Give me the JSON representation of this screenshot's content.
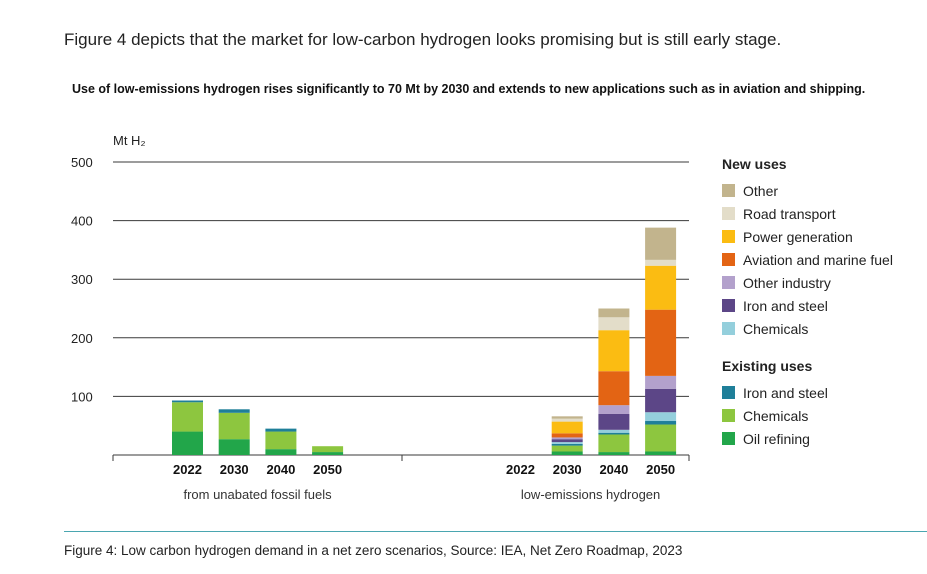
{
  "intro_text": "Figure 4 depicts that the market for low-carbon hydrogen looks promising but is still early stage.",
  "chart_data": {
    "type": "bar",
    "stacked": true,
    "title": "Use of low-emissions hydrogen rises significantly to 70 Mt by 2030 and extends to new applications such as in aviation and shipping.",
    "ylabel": "Mt H₂",
    "ylim": [
      0,
      500
    ],
    "yticks": [
      "500",
      "400",
      "300",
      "200",
      "100"
    ],
    "groups": [
      {
        "label": "from unabated fossil fuels",
        "categories": [
          "2022",
          "2030",
          "2040",
          "2050"
        ]
      },
      {
        "label": "low-emissions hydrogen",
        "categories": [
          "2022",
          "2030",
          "2040",
          "2050"
        ]
      }
    ],
    "series": [
      {
        "key": "oil_refining",
        "name": "Oil refining",
        "color": "#22a64a",
        "values": [
          [
            40,
            27,
            10,
            5
          ],
          [
            0,
            6,
            5,
            6
          ]
        ]
      },
      {
        "key": "chem_existing",
        "name": "Chemicals",
        "color": "#8dc63f",
        "values": [
          [
            50,
            45,
            30,
            10
          ],
          [
            0,
            10,
            30,
            46
          ]
        ]
      },
      {
        "key": "iron_existing",
        "name": "Iron and steel",
        "color": "#1f7f99",
        "values": [
          [
            3,
            6,
            5,
            0
          ],
          [
            0,
            3,
            3,
            6
          ]
        ]
      },
      {
        "key": "chem_new",
        "name": "Chemicals",
        "color": "#94cfdc",
        "values": [
          [
            0,
            0,
            0,
            0
          ],
          [
            0,
            3,
            5,
            15
          ]
        ]
      },
      {
        "key": "iron_new",
        "name": "Iron and steel",
        "color": "#5c4687",
        "values": [
          [
            0,
            0,
            0,
            0
          ],
          [
            0,
            5,
            27,
            40
          ]
        ]
      },
      {
        "key": "other_industry",
        "name": "Other industry",
        "color": "#b3a1cc",
        "values": [
          [
            0,
            0,
            0,
            0
          ],
          [
            0,
            3,
            15,
            22
          ]
        ]
      },
      {
        "key": "aviation_marine",
        "name": "Aviation and marine fuel",
        "color": "#e36414",
        "values": [
          [
            0,
            0,
            0,
            0
          ],
          [
            0,
            7,
            58,
            113
          ]
        ]
      },
      {
        "key": "power_gen",
        "name": "Power generation",
        "color": "#fbbc12",
        "values": [
          [
            0,
            0,
            0,
            0
          ],
          [
            0,
            20,
            70,
            75
          ]
        ]
      },
      {
        "key": "road_transport",
        "name": "Road transport",
        "color": "#e3ddc9",
        "values": [
          [
            0,
            0,
            0,
            0
          ],
          [
            0,
            5,
            22,
            10
          ]
        ]
      },
      {
        "key": "other_new",
        "name": "Other",
        "color": "#c2b48d",
        "values": [
          [
            0,
            0,
            0,
            0
          ],
          [
            0,
            4,
            15,
            55
          ]
        ]
      }
    ]
  },
  "legend": {
    "new_heading": "New uses",
    "new_items": [
      {
        "label": "Other",
        "color": "#c2b48d"
      },
      {
        "label": "Road transport",
        "color": "#e3ddc9"
      },
      {
        "label": "Power generation",
        "color": "#fbbc12"
      },
      {
        "label": "Aviation and marine fuel",
        "color": "#e36414"
      },
      {
        "label": "Other industry",
        "color": "#b3a1cc"
      },
      {
        "label": "Iron and steel",
        "color": "#5c4687"
      },
      {
        "label": "Chemicals",
        "color": "#94cfdc"
      }
    ],
    "existing_heading": "Existing uses",
    "existing_items": [
      {
        "label": "Iron and steel",
        "color": "#1f7f99"
      },
      {
        "label": "Chemicals",
        "color": "#8dc63f"
      },
      {
        "label": "Oil refining",
        "color": "#22a64a"
      }
    ]
  },
  "caption": "Figure 4: Low carbon hydrogen demand in a net zero scenarios, Source: IEA, Net Zero Roadmap, 2023"
}
